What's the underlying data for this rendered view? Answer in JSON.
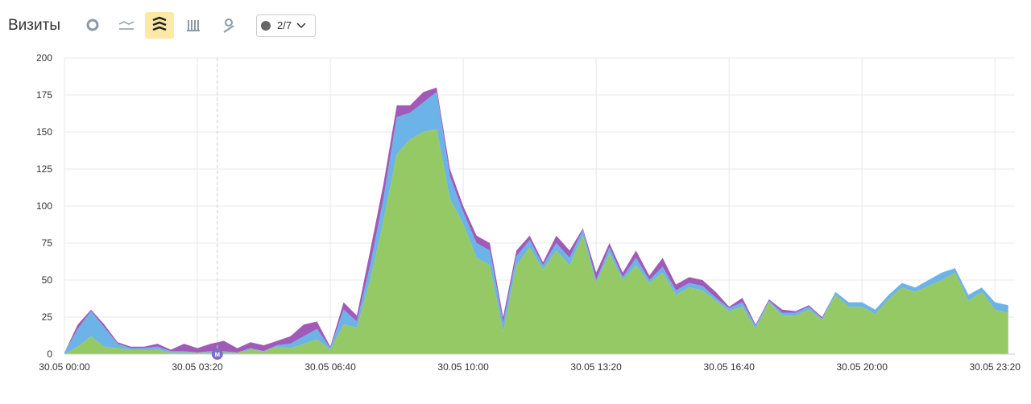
{
  "toolbar": {
    "title": "Визиты",
    "filter_label": "2/7"
  },
  "chart_data": {
    "type": "stacked-area",
    "x": [
      0,
      20,
      40,
      60,
      80,
      100,
      120,
      140,
      160,
      180,
      200,
      220,
      240,
      260,
      280,
      300,
      320,
      340,
      360,
      380,
      400,
      420,
      440,
      460,
      480,
      500,
      520,
      540,
      560,
      580,
      600,
      620,
      640,
      660,
      680,
      700,
      720,
      740,
      760,
      780,
      800,
      820,
      840,
      860,
      880,
      900,
      920,
      940,
      960,
      980,
      1000,
      1020,
      1040,
      1060,
      1080,
      1100,
      1120,
      1140,
      1160,
      1180,
      1200,
      1220,
      1240,
      1260,
      1280,
      1300,
      1320,
      1340,
      1360,
      1380,
      1400,
      1420
    ],
    "series": [
      {
        "color": "#95c965",
        "values": [
          0,
          5,
          12,
          5,
          4,
          3,
          3,
          3,
          1,
          1,
          1,
          1,
          1,
          1,
          3,
          2,
          5,
          4,
          7,
          10,
          3,
          20,
          18,
          50,
          90,
          135,
          145,
          150,
          152,
          105,
          88,
          65,
          60,
          15,
          60,
          72,
          57,
          70,
          60,
          80,
          48,
          68,
          50,
          60,
          48,
          55,
          40,
          45,
          43,
          36,
          29,
          32,
          17,
          35,
          26,
          26,
          30,
          23,
          40,
          32,
          32,
          27,
          37,
          45,
          42,
          46,
          50,
          55,
          36,
          42,
          30,
          28
        ]
      },
      {
        "color": "#6cb3e8",
        "values": [
          1,
          12,
          17,
          13,
          3,
          1,
          1,
          2,
          1,
          1,
          0,
          1,
          1,
          0,
          1,
          0,
          1,
          3,
          5,
          7,
          1,
          10,
          4,
          10,
          15,
          25,
          18,
          20,
          25,
          15,
          8,
          10,
          10,
          6,
          6,
          5,
          3,
          5,
          5,
          4,
          2,
          4,
          2,
          5,
          2,
          4,
          3,
          3,
          3,
          2,
          2,
          3,
          2,
          1,
          2,
          2,
          2,
          1,
          2,
          3,
          3,
          3,
          3,
          3,
          3,
          4,
          5,
          3,
          4,
          3,
          5,
          5
        ]
      },
      {
        "color": "#a25ab8",
        "values": [
          0,
          3,
          1,
          2,
          1,
          1,
          1,
          2,
          1,
          5,
          3,
          5,
          7,
          3,
          4,
          4,
          3,
          5,
          8,
          5,
          1,
          5,
          4,
          10,
          10,
          8,
          5,
          7,
          3,
          5,
          4,
          5,
          5,
          4,
          4,
          3,
          2,
          5,
          5,
          1,
          5,
          3,
          3,
          5,
          3,
          6,
          4,
          4,
          4,
          4,
          1,
          3,
          1,
          1,
          2,
          1,
          1,
          1,
          0,
          0,
          0,
          0,
          0,
          0,
          0,
          0,
          0,
          0,
          0,
          0,
          0,
          0
        ]
      }
    ],
    "xlim": [
      0,
      1430
    ],
    "xticks": [
      {
        "value": 0,
        "label": "30.05 00:00"
      },
      {
        "value": 200,
        "label": "30.05 03:20"
      },
      {
        "value": 400,
        "label": "30.05 06:40"
      },
      {
        "value": 600,
        "label": "30.05 10:00"
      },
      {
        "value": 800,
        "label": "30.05 13:20"
      },
      {
        "value": 1000,
        "label": "30.05 16:40"
      },
      {
        "value": 1200,
        "label": "30.05 20:00"
      },
      {
        "value": 1400,
        "label": "30.05 23:20"
      }
    ],
    "ylim": [
      0,
      200
    ],
    "yticks": [
      0,
      25,
      50,
      75,
      100,
      125,
      150,
      175,
      200
    ],
    "grid": true,
    "marker": {
      "x": 230,
      "label": "м"
    }
  }
}
